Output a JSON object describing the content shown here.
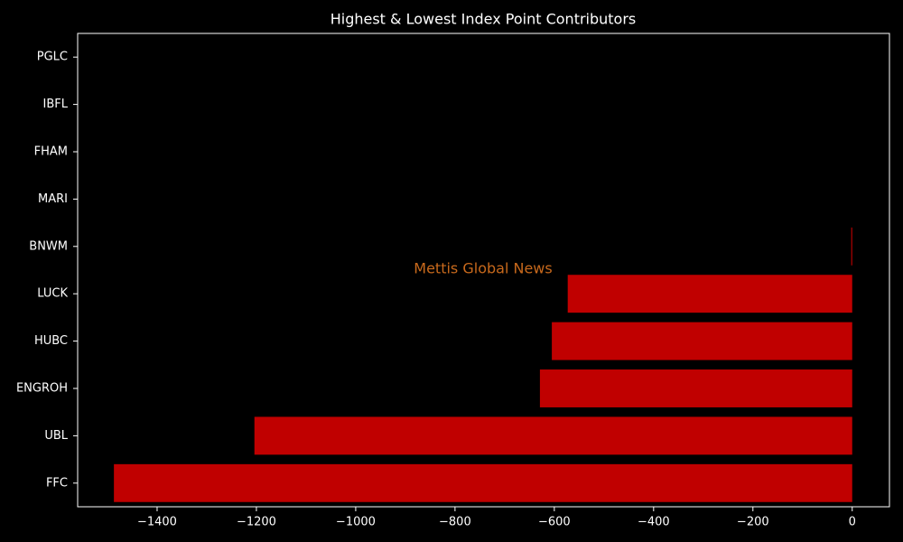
{
  "chart_data": {
    "type": "barh",
    "title": "Highest & Lowest Index Point Contributors",
    "annotation": "Mettis Global News",
    "categories": [
      "FFC",
      "UBL",
      "ENGROH",
      "HUBC",
      "LUCK",
      "BNWM",
      "MARI",
      "FHAM",
      "IBFL",
      "PGLC"
    ],
    "values": [
      -1487,
      -1204,
      -629,
      -605,
      -573,
      -2,
      0,
      0,
      0,
      0
    ],
    "color": "#c00000",
    "xlim": [
      -1560,
      75
    ],
    "xticks": [
      {
        "value": -1400,
        "label": "−1400"
      },
      {
        "value": -1200,
        "label": "−1200"
      },
      {
        "value": -1000,
        "label": "−1000"
      },
      {
        "value": -800,
        "label": "−800"
      },
      {
        "value": -600,
        "label": "−600"
      },
      {
        "value": -400,
        "label": "−400"
      },
      {
        "value": -200,
        "label": "−200"
      },
      0
    ]
  }
}
